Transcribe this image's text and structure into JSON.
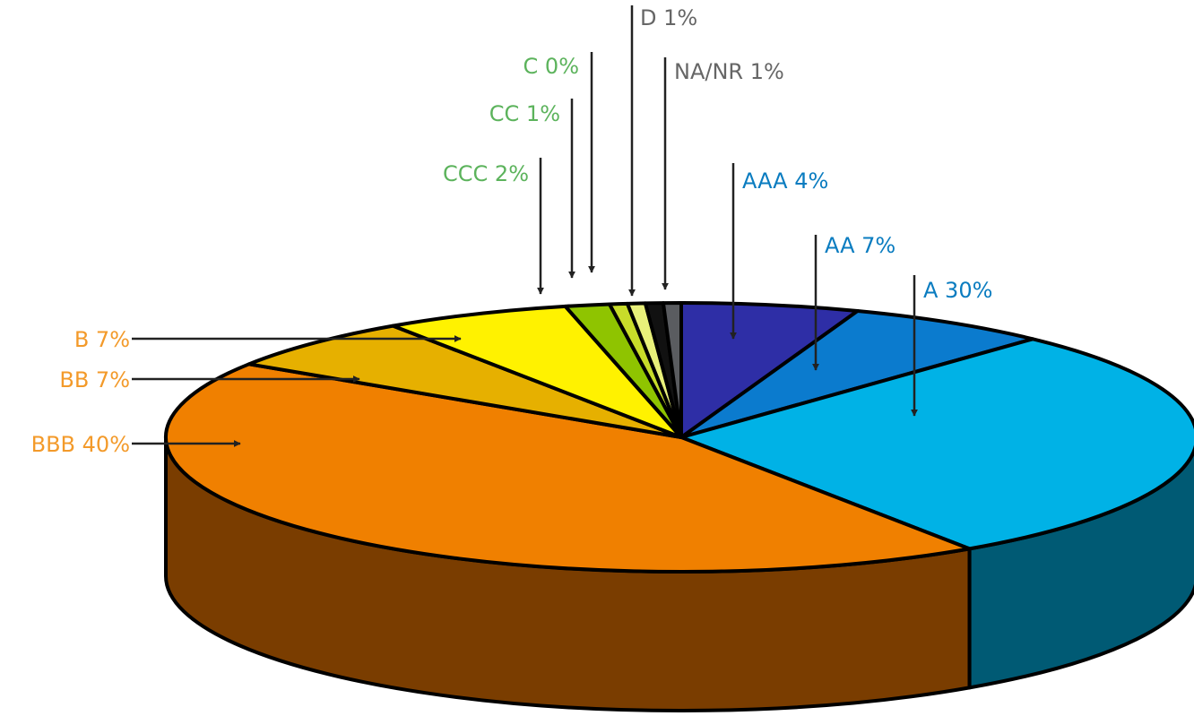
{
  "chart_data": {
    "type": "pie",
    "title": "",
    "subtitle": "",
    "slices": [
      {
        "label": "AAA",
        "text": "AAA 4%",
        "value": 4,
        "color": "#2e2ea6",
        "label_color": "#0a7cc0"
      },
      {
        "label": "AA",
        "text": "AA 7%",
        "value": 7,
        "color": "#0b7bce",
        "label_color": "#0a7cc0"
      },
      {
        "label": "A",
        "text": "A 30%",
        "value": 30,
        "color": "#00b2e6",
        "side_color": "#005a74",
        "label_color": "#0a7cc0"
      },
      {
        "label": "BBB",
        "text": "BBB 40%",
        "value": 40,
        "color": "#f08000",
        "side_color": "#7a3d00",
        "label_color": "#f39a2a"
      },
      {
        "label": "BB",
        "text": "BB 7%",
        "value": 7,
        "color": "#e6b000",
        "label_color": "#f39a2a"
      },
      {
        "label": "B",
        "text": "B 7%",
        "value": 7,
        "color": "#fff200",
        "label_color": "#f39a2a"
      },
      {
        "label": "CCC",
        "text": "CCC 2%",
        "value": 2,
        "color": "#8fc400",
        "label_color": "#5cb35c"
      },
      {
        "label": "CC",
        "text": "CC 1%",
        "value": 1,
        "color": "#c8dc2a",
        "label_color": "#5cb35c"
      },
      {
        "label": "C",
        "text": "C 0%",
        "value": 0,
        "color": "#e8f07a",
        "label_color": "#5cb35c"
      },
      {
        "label": "D",
        "text": "D 1%",
        "value": 1,
        "color": "#111111",
        "label_color": "#666666"
      },
      {
        "label": "NA/NR",
        "text": "NA/NR 1%",
        "value": 1,
        "color": "#5a5c60",
        "label_color": "#666666"
      }
    ],
    "legend": "none",
    "style": "3d-pie-with-callouts"
  }
}
